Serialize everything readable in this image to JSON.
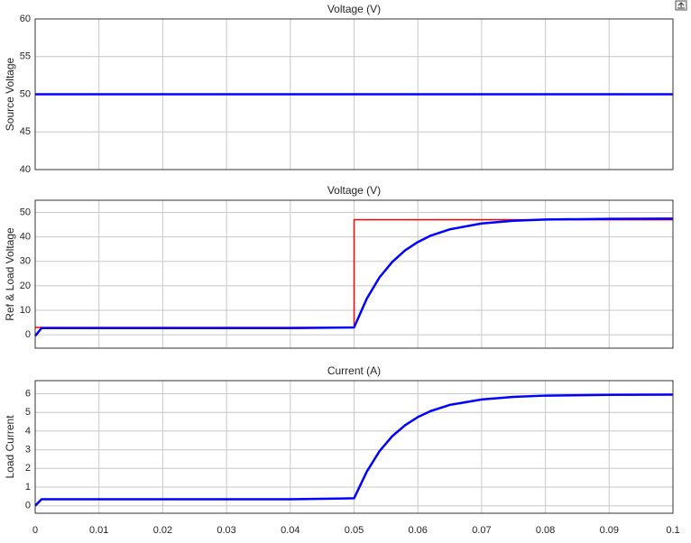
{
  "chart_data": [
    {
      "type": "line",
      "title": "Voltage (V)",
      "y_label": "Source Voltage",
      "xlim": [
        0,
        0.1
      ],
      "xticks": [
        0,
        0.01,
        0.02,
        0.03,
        0.04,
        0.05,
        0.06,
        0.07,
        0.08,
        0.09,
        0.1
      ],
      "show_xtick_labels": false,
      "ylim": [
        40,
        60
      ],
      "yticks": [
        40,
        45,
        50,
        55,
        60
      ],
      "grid": true,
      "series": [
        {
          "color": "#0000ff",
          "x": [
            0,
            0.1
          ],
          "values": [
            50,
            50
          ]
        }
      ]
    },
    {
      "type": "line",
      "title": "Voltage (V)",
      "y_label": "Ref & Load Voltage",
      "xlim": [
        0,
        0.1
      ],
      "xticks": [
        0,
        0.01,
        0.02,
        0.03,
        0.04,
        0.05,
        0.06,
        0.07,
        0.08,
        0.09,
        0.1
      ],
      "show_xtick_labels": false,
      "ylim": [
        -5.5,
        55
      ],
      "yticks": [
        0,
        10,
        20,
        30,
        40,
        50
      ],
      "grid": true,
      "series": [
        {
          "color": "#ff0000",
          "x": [
            0,
            0.05,
            0.05,
            0.1
          ],
          "values": [
            3,
            3,
            47,
            47
          ]
        },
        {
          "color": "#0000ff",
          "x": [
            0,
            0.001,
            0.01,
            0.02,
            0.03,
            0.04,
            0.05,
            0.052,
            0.054,
            0.056,
            0.058,
            0.06,
            0.062,
            0.065,
            0.07,
            0.075,
            0.08,
            0.09,
            0.1
          ],
          "values": [
            -0.5,
            2.7,
            2.7,
            2.7,
            2.7,
            2.7,
            3,
            14.8,
            23.5,
            29.8,
            34.5,
            37.9,
            40.5,
            43.1,
            45.5,
            46.6,
            47.1,
            47.4,
            47.5
          ]
        }
      ]
    },
    {
      "type": "line",
      "title": "Current (A)",
      "y_label": "Load Current",
      "xlim": [
        0,
        0.1
      ],
      "xticks": [
        0,
        0.01,
        0.02,
        0.03,
        0.04,
        0.05,
        0.06,
        0.07,
        0.08,
        0.09,
        0.1
      ],
      "show_xtick_labels": true,
      "ylim": [
        -0.4,
        6.7
      ],
      "yticks": [
        0,
        1,
        2,
        3,
        4,
        5,
        6
      ],
      "grid": true,
      "series": [
        {
          "color": "#0000ff",
          "x": [
            0,
            0.001,
            0.01,
            0.02,
            0.03,
            0.04,
            0.05,
            0.052,
            0.054,
            0.056,
            0.058,
            0.06,
            0.062,
            0.065,
            0.07,
            0.075,
            0.08,
            0.09,
            0.1
          ],
          "values": [
            0,
            0.35,
            0.35,
            0.35,
            0.35,
            0.35,
            0.4,
            1.83,
            2.93,
            3.73,
            4.31,
            4.75,
            5.07,
            5.4,
            5.69,
            5.83,
            5.9,
            5.94,
            5.95
          ]
        }
      ]
    }
  ]
}
